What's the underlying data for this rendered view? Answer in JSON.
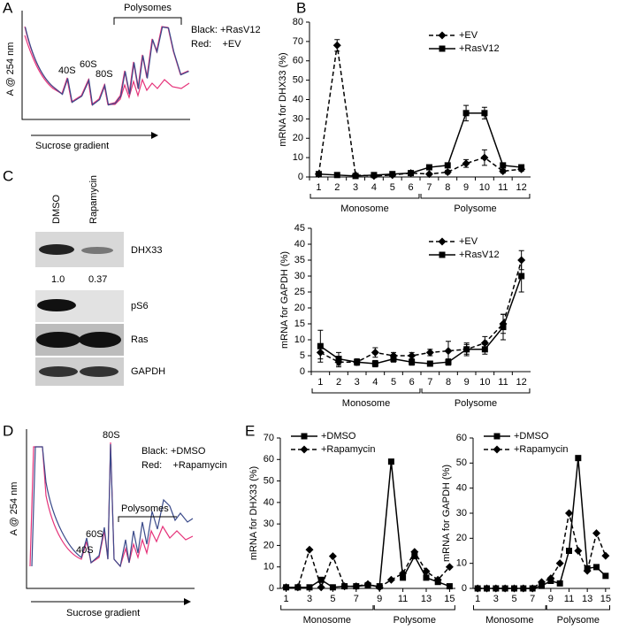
{
  "figure": {
    "panel_labels": [
      "A",
      "B",
      "C",
      "D",
      "E"
    ],
    "A": {
      "y_label": "A @ 254 nm",
      "x_label": "Sucrose gradient",
      "bracket": "Polysomes",
      "peaks": [
        "40S",
        "60S",
        "80S"
      ],
      "key": [
        "Black: +RasV12",
        "Red:    +EV"
      ]
    },
    "C": {
      "lanes": [
        "DMSO",
        "Rapamycin"
      ],
      "blots": [
        "DHX33",
        "pS6",
        "Ras",
        "GAPDH"
      ],
      "quant": [
        "1.0",
        "0.37"
      ]
    },
    "D": {
      "y_label": "A @ 254 nm",
      "x_label": "Sucrose gradient",
      "bracket": "Polysomes",
      "peaks": [
        "40S",
        "60S",
        "80S"
      ],
      "key": [
        "Black: +DMSO",
        "Red:    +Rapamycin"
      ]
    }
  },
  "chart_data": [
    {
      "type": "line",
      "y_label": "mRNA for DHX33 (%)",
      "categories": [
        "1",
        "2",
        "3",
        "4",
        "5",
        "6",
        "7",
        "8",
        "9",
        "10",
        "11",
        "12"
      ],
      "groups": [
        "Monosome",
        "Polysome"
      ],
      "ylim": [
        0,
        80
      ],
      "yticks": [
        0,
        10,
        20,
        30,
        40,
        50,
        60,
        70,
        80
      ],
      "legend": "upper right",
      "series": [
        {
          "name": "+EV",
          "color": "#000000",
          "line_style": "dashed",
          "marker": "diamond",
          "values": [
            1.5,
            68,
            1,
            0.5,
            1,
            2,
            1.5,
            2.5,
            7,
            10,
            3,
            4
          ],
          "errors": [
            0.5,
            3,
            0.5,
            0.5,
            0.5,
            0.5,
            0.5,
            1,
            2,
            4,
            1,
            1
          ]
        },
        {
          "name": "+RasV12",
          "color": "#000000",
          "line_style": "solid",
          "marker": "square",
          "values": [
            1.5,
            1,
            0.5,
            1,
            1.5,
            2,
            5,
            6,
            33,
            33,
            6,
            5
          ],
          "errors": [
            0.5,
            0.5,
            0.5,
            0.5,
            0.5,
            0.5,
            1,
            1,
            4,
            3,
            1,
            1
          ]
        }
      ]
    },
    {
      "type": "line",
      "y_label": "mRNA for GAPDH (%)",
      "categories": [
        "1",
        "2",
        "3",
        "4",
        "5",
        "6",
        "7",
        "8",
        "9",
        "10",
        "11",
        "12"
      ],
      "groups": [
        "Monosome",
        "Polysome"
      ],
      "ylim": [
        0,
        45
      ],
      "yticks": [
        0,
        5,
        10,
        15,
        20,
        25,
        30,
        35,
        40,
        45
      ],
      "legend": "upper right",
      "series": [
        {
          "name": "+EV",
          "color": "#000000",
          "line_style": "dashed",
          "marker": "diamond",
          "values": [
            6,
            3,
            3,
            6,
            5,
            5,
            6,
            6.5,
            7,
            9,
            15,
            35
          ],
          "errors": [
            2,
            1.5,
            1,
            1.5,
            1,
            1,
            1,
            3,
            2,
            2,
            3,
            3
          ]
        },
        {
          "name": "+RasV12",
          "color": "#000000",
          "line_style": "solid",
          "marker": "square",
          "values": [
            8,
            4,
            3,
            2.5,
            4,
            3,
            2.5,
            3,
            7,
            7,
            14,
            30
          ],
          "errors": [
            5,
            2,
            1,
            1,
            1,
            1,
            0.5,
            1,
            1.5,
            1.5,
            4,
            5
          ]
        }
      ]
    },
    {
      "type": "line",
      "y_label": "mRNA for DHX33 (%)",
      "x": [
        1,
        2,
        3,
        4,
        5,
        6,
        7,
        8,
        9,
        10,
        11,
        12,
        13,
        14,
        15
      ],
      "xlim": [
        0.5,
        15.5
      ],
      "xticks": [
        1,
        3,
        5,
        7,
        9,
        11,
        13,
        15
      ],
      "groups": [
        "Monosome",
        "Polysome"
      ],
      "ylim": [
        0,
        70
      ],
      "yticks": [
        0,
        10,
        20,
        30,
        40,
        50,
        60,
        70
      ],
      "legend": "upper left",
      "series": [
        {
          "name": "+DMSO",
          "color": "#000000",
          "line_style": "solid",
          "marker": "square",
          "values": [
            0.5,
            0.5,
            0.5,
            4,
            0.5,
            1,
            1,
            1.5,
            1,
            59,
            5,
            15,
            5,
            3,
            1
          ]
        },
        {
          "name": "+Rapamycin",
          "color": "#000000",
          "line_style": "dashed",
          "marker": "diamond",
          "values": [
            0.5,
            0.5,
            18,
            0.5,
            15,
            1,
            1,
            2,
            0.5,
            4,
            7,
            17,
            8,
            4,
            10
          ]
        }
      ]
    },
    {
      "type": "line",
      "y_label": "mRNA for GAPDH (%)",
      "x": [
        1,
        2,
        3,
        4,
        5,
        6,
        7,
        8,
        9,
        10,
        11,
        12,
        13,
        14,
        15
      ],
      "xlim": [
        0.5,
        15.5
      ],
      "xticks": [
        1,
        3,
        5,
        7,
        9,
        11,
        13,
        15
      ],
      "groups": [
        "Monosome",
        "Polysome"
      ],
      "ylim": [
        0,
        60
      ],
      "yticks": [
        0,
        10,
        20,
        30,
        40,
        50,
        60
      ],
      "legend": "upper left",
      "series": [
        {
          "name": "+DMSO",
          "color": "#000000",
          "line_style": "solid",
          "marker": "square",
          "values": [
            0,
            0,
            0,
            0,
            0,
            0,
            0,
            1,
            3,
            2,
            15,
            52,
            8,
            8.5,
            5
          ]
        },
        {
          "name": "+Rapamycin",
          "color": "#000000",
          "line_style": "dashed",
          "marker": "diamond",
          "values": [
            0,
            0,
            0,
            0,
            0,
            0,
            0,
            2.5,
            4,
            10,
            30,
            15,
            7,
            22,
            13
          ]
        }
      ]
    }
  ]
}
